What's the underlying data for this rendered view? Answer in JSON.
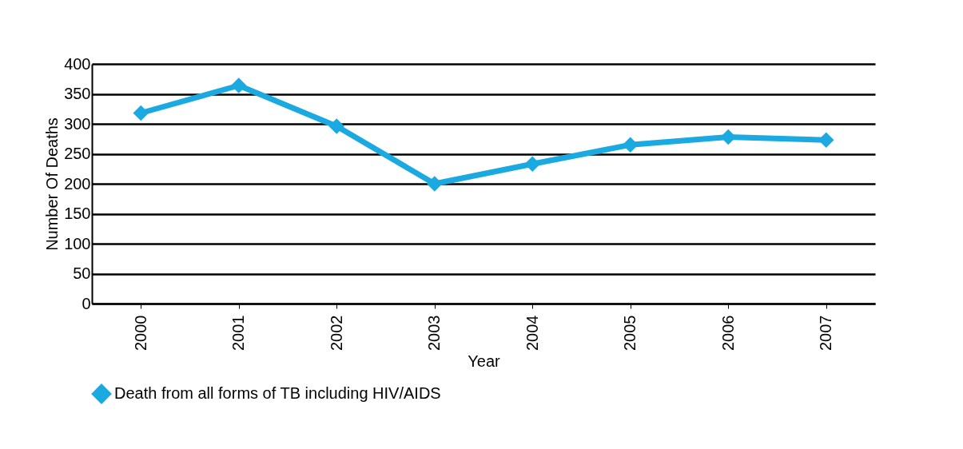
{
  "chart_data": {
    "type": "line",
    "xlabel": "Year",
    "ylabel": "Number Of Deaths",
    "categories": [
      "2000",
      "2001",
      "2002",
      "2003",
      "2004",
      "2005",
      "2006",
      "2007"
    ],
    "series": [
      {
        "name": "Death from all forms of TB including HIV/AIDS",
        "color": "#1ba9e1",
        "values": [
          318,
          364,
          296,
          200,
          233,
          265,
          278,
          273
        ]
      }
    ],
    "ylim": [
      0,
      400
    ],
    "yticks": [
      0,
      50,
      100,
      150,
      200,
      250,
      300,
      350,
      400
    ],
    "grid": "y",
    "legend": "bottom",
    "marker": "diamond",
    "line_style": "solid"
  }
}
